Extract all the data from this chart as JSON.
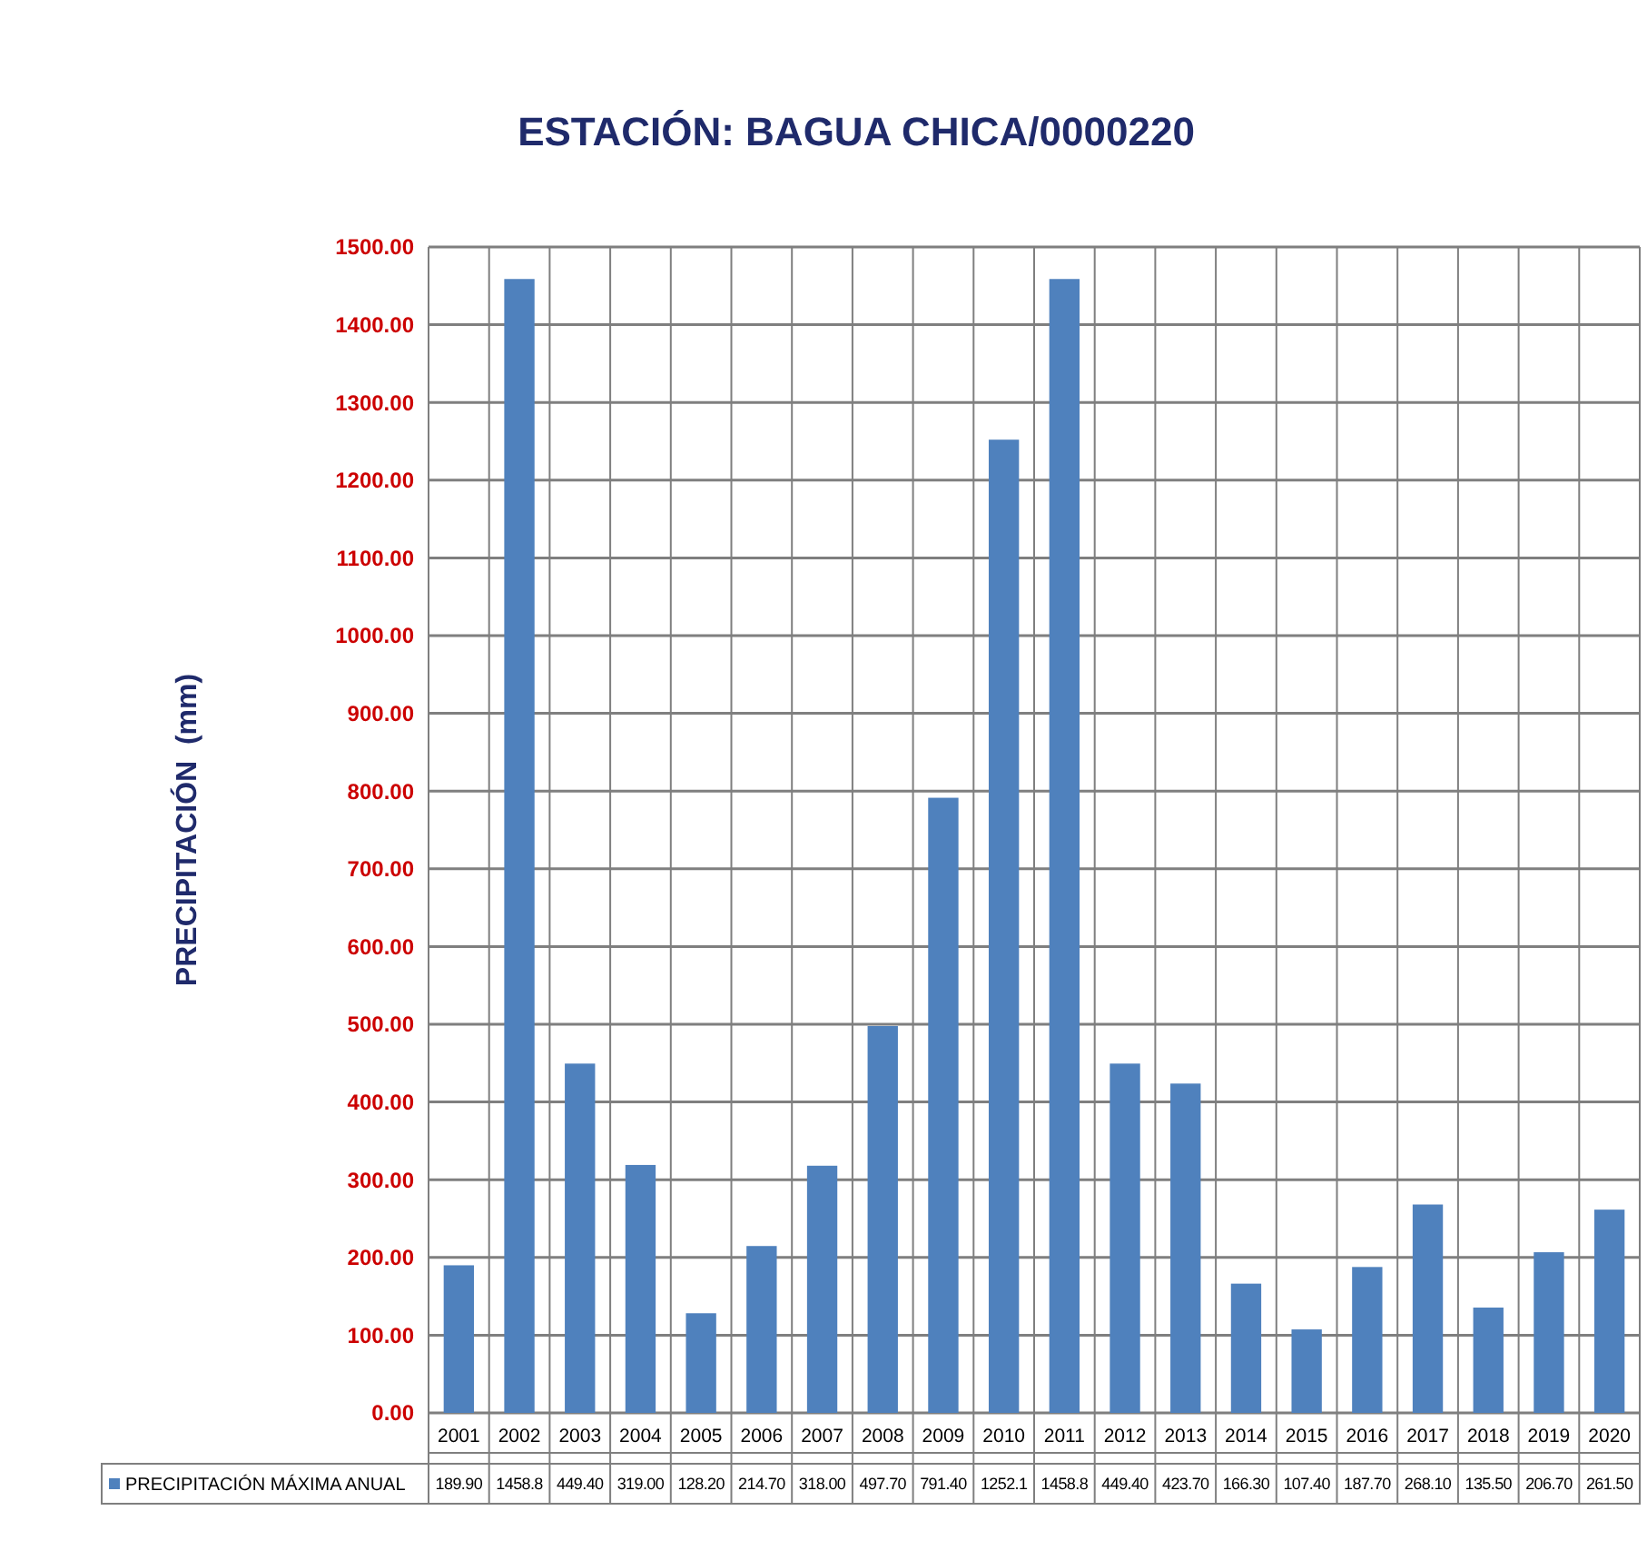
{
  "chart_data": {
    "type": "bar",
    "title": "ESTACIÓN: BAGUA CHICA/0000220",
    "ylabel": "PRECIPITACIÓN  (mm)",
    "categories": [
      "2001",
      "2002",
      "2003",
      "2004",
      "2005",
      "2006",
      "2007",
      "2008",
      "2009",
      "2010",
      "2011",
      "2012",
      "2013",
      "2014",
      "2015",
      "2016",
      "2017",
      "2018",
      "2019",
      "2020"
    ],
    "series": [
      {
        "name": "PRECIPITACIÓN MÁXIMA ANUAL",
        "color": "#4f81bd",
        "values": [
          189.9,
          1458.8,
          449.4,
          319.0,
          128.2,
          214.7,
          318.0,
          497.7,
          791.4,
          1252.1,
          1458.8,
          449.4,
          423.7,
          166.3,
          107.4,
          187.7,
          268.1,
          135.5,
          206.7,
          261.5
        ],
        "value_labels": [
          "189.90",
          "1458.8",
          "449.40",
          "319.00",
          "128.20",
          "214.70",
          "318.00",
          "497.70",
          "791.40",
          "1252.1",
          "1458.8",
          "449.40",
          "423.70",
          "166.30",
          "107.40",
          "187.70",
          "268.10",
          "135.50",
          "206.70",
          "261.50"
        ]
      }
    ],
    "ylim": [
      0,
      1500
    ],
    "yticks": [
      {
        "value": 0,
        "label": "0.00"
      },
      {
        "value": 100,
        "label": "100.00"
      },
      {
        "value": 200,
        "label": "200.00"
      },
      {
        "value": 300,
        "label": "300.00"
      },
      {
        "value": 400,
        "label": "400.00"
      },
      {
        "value": 500,
        "label": "500.00"
      },
      {
        "value": 600,
        "label": "600.00"
      },
      {
        "value": 700,
        "label": "700.00"
      },
      {
        "value": 800,
        "label": "800.00"
      },
      {
        "value": 900,
        "label": "900.00"
      },
      {
        "value": 1000,
        "label": "1000.00"
      },
      {
        "value": 1100,
        "label": "1100.00"
      },
      {
        "value": 1200,
        "label": "1200.00"
      },
      {
        "value": 1300,
        "label": "1300.00"
      },
      {
        "value": 1400,
        "label": "1400.00"
      },
      {
        "value": 1500,
        "label": "1500.00"
      }
    ],
    "grid": true,
    "legend": "bottom"
  }
}
